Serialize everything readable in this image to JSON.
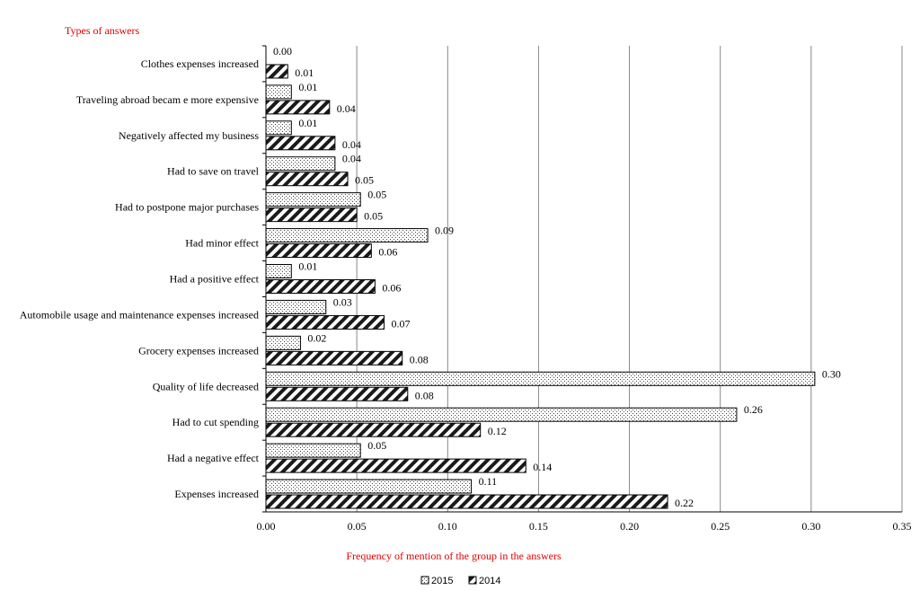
{
  "chart_data": {
    "type": "bar",
    "orientation": "horizontal",
    "ylabel": "Types of answers",
    "xlabel": "Frequency of mention of the group in the answers",
    "xlim": [
      0,
      0.35
    ],
    "xticks": [
      "0.00",
      "0.05",
      "0.10",
      "0.15",
      "0.20",
      "0.25",
      "0.30",
      "0.35"
    ],
    "grid": "vertical",
    "legend_position": "bottom",
    "categories": [
      "Clothes expenses increased",
      "Traveling abroad becam e more expensive",
      "Negatively affected my business",
      "Had to save on travel",
      "Had to postpone major purchases",
      "Had minor effect",
      "Had a positive effect",
      "Automobile usage and maintenance expenses increased",
      "Grocery expenses increased",
      "Quality of life decreased",
      "Had to cut spending",
      "Had a negative effect",
      "Expenses increased"
    ],
    "series": [
      {
        "name": "2015",
        "pattern": "dots",
        "values": [
          0.0,
          0.014,
          0.014,
          0.038,
          0.052,
          0.089,
          0.014,
          0.033,
          0.019,
          0.302,
          0.259,
          0.052,
          0.113
        ],
        "labels": [
          "0.00",
          "0.01",
          "0.01",
          "0.04",
          "0.05",
          "0.09",
          "0.01",
          "0.03",
          "0.02",
          "0.30",
          "0.26",
          "0.05",
          "0.11"
        ]
      },
      {
        "name": "2014",
        "pattern": "diagonal-stripes",
        "values": [
          0.012,
          0.035,
          0.038,
          0.045,
          0.05,
          0.058,
          0.06,
          0.065,
          0.075,
          0.078,
          0.118,
          0.143,
          0.221
        ],
        "labels": [
          "0.01",
          "0.04",
          "0.04",
          "0.05",
          "0.05",
          "0.06",
          "0.06",
          "0.07",
          "0.08",
          "0.08",
          "0.12",
          "0.14",
          "0.22"
        ]
      }
    ]
  },
  "colors": {
    "axis_title": "#e00000",
    "bar_stroke": "#000000",
    "stripe_fill": "#1a1a1a",
    "grid": "#888888"
  }
}
